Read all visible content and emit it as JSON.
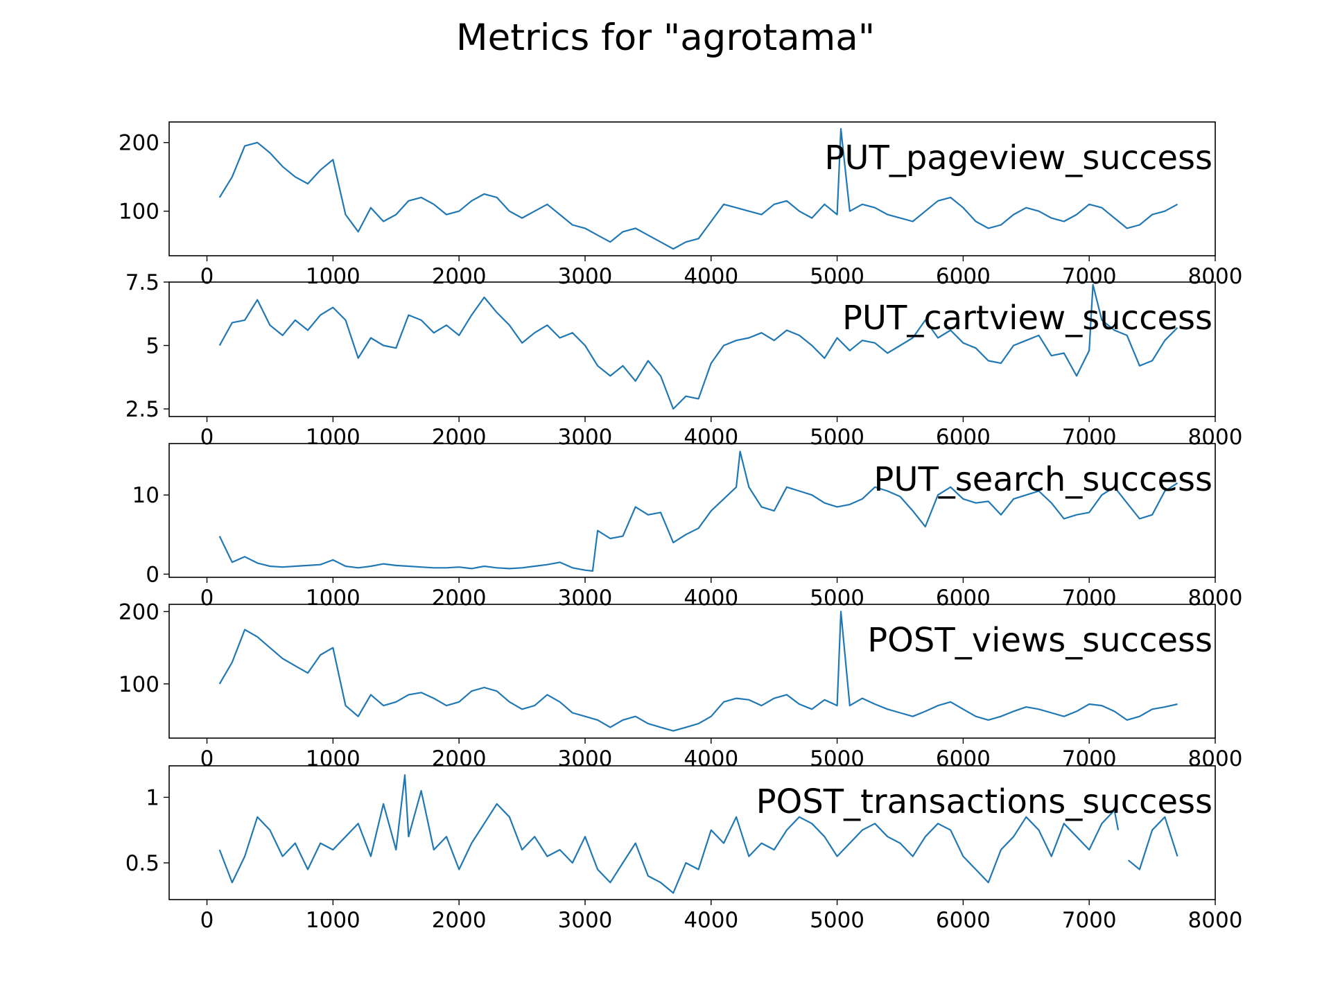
{
  "title": "Metrics for \"agrotama\"",
  "colors": {
    "line": "#1f77b4",
    "axes": "#000000",
    "background": "#ffffff"
  },
  "chart_data": [
    {
      "type": "line",
      "title": "PUT_pageview_success",
      "xlim": [
        -300,
        8000
      ],
      "ylim": [
        35,
        230
      ],
      "xticks": [
        0,
        1000,
        2000,
        3000,
        4000,
        5000,
        6000,
        7000,
        8000
      ],
      "yticks": [
        100,
        200
      ],
      "x": [
        100,
        200,
        300,
        400,
        500,
        600,
        700,
        800,
        900,
        1000,
        1100,
        1200,
        1300,
        1400,
        1500,
        1600,
        1700,
        1800,
        1900,
        2000,
        2100,
        2200,
        2300,
        2400,
        2500,
        2600,
        2700,
        2800,
        2900,
        3000,
        3100,
        3200,
        3300,
        3400,
        3500,
        3600,
        3700,
        3800,
        3900,
        4000,
        4100,
        4200,
        4300,
        4400,
        4500,
        4600,
        4700,
        4800,
        4900,
        5000,
        5030,
        5100,
        5200,
        5300,
        5400,
        5500,
        5600,
        5700,
        5800,
        5900,
        6000,
        6100,
        6200,
        6300,
        6400,
        6500,
        6600,
        6700,
        6800,
        6900,
        7000,
        7100,
        7200,
        7300,
        7400,
        7500,
        7600,
        7700
      ],
      "values": [
        120,
        150,
        195,
        200,
        185,
        165,
        150,
        140,
        160,
        175,
        95,
        70,
        105,
        85,
        95,
        115,
        120,
        110,
        95,
        100,
        115,
        125,
        120,
        100,
        90,
        100,
        110,
        95,
        80,
        75,
        65,
        55,
        70,
        75,
        65,
        55,
        45,
        55,
        60,
        85,
        110,
        105,
        100,
        95,
        110,
        115,
        100,
        90,
        110,
        95,
        220,
        100,
        110,
        105,
        95,
        90,
        85,
        100,
        115,
        120,
        105,
        85,
        75,
        80,
        95,
        105,
        100,
        90,
        85,
        95,
        110,
        105,
        90,
        75,
        80,
        95,
        100,
        110
      ]
    },
    {
      "type": "line",
      "title": "PUT_cartview_success",
      "xlim": [
        -300,
        8000
      ],
      "ylim": [
        2.2,
        7.5
      ],
      "xticks": [
        0,
        1000,
        2000,
        3000,
        4000,
        5000,
        6000,
        7000,
        8000
      ],
      "yticks": [
        2.5,
        5.0,
        7.5
      ],
      "x": [
        100,
        200,
        300,
        400,
        500,
        600,
        700,
        800,
        900,
        1000,
        1100,
        1200,
        1300,
        1400,
        1500,
        1600,
        1700,
        1800,
        1900,
        2000,
        2100,
        2200,
        2300,
        2400,
        2500,
        2600,
        2700,
        2800,
        2900,
        3000,
        3100,
        3200,
        3300,
        3400,
        3500,
        3600,
        3700,
        3800,
        3900,
        4000,
        4100,
        4200,
        4300,
        4400,
        4500,
        4600,
        4700,
        4800,
        4900,
        5000,
        5100,
        5200,
        5300,
        5400,
        5500,
        5600,
        5700,
        5800,
        5900,
        6000,
        6100,
        6200,
        6300,
        6400,
        6500,
        6600,
        6700,
        6800,
        6900,
        7000,
        7030,
        7100,
        7200,
        7300,
        7400,
        7500,
        7600,
        7700
      ],
      "values": [
        5.0,
        5.9,
        6.0,
        6.8,
        5.8,
        5.4,
        6.0,
        5.6,
        6.2,
        6.5,
        6.0,
        4.5,
        5.3,
        5.0,
        4.9,
        6.2,
        6.0,
        5.5,
        5.8,
        5.4,
        6.2,
        6.9,
        6.3,
        5.8,
        5.1,
        5.5,
        5.8,
        5.3,
        5.5,
        5.0,
        4.2,
        3.8,
        4.2,
        3.6,
        4.4,
        3.8,
        2.5,
        3.0,
        2.9,
        4.3,
        5.0,
        5.2,
        5.3,
        5.5,
        5.2,
        5.6,
        5.4,
        5.0,
        4.5,
        5.3,
        4.8,
        5.2,
        5.1,
        4.7,
        5.0,
        5.3,
        6.0,
        5.3,
        5.6,
        5.1,
        4.9,
        4.4,
        4.3,
        5.0,
        5.2,
        5.4,
        4.6,
        4.7,
        3.8,
        4.8,
        7.4,
        6.0,
        5.6,
        5.4,
        4.2,
        4.4,
        5.2,
        5.7
      ]
    },
    {
      "type": "line",
      "title": "PUT_search_success",
      "xlim": [
        -300,
        8000
      ],
      "ylim": [
        -0.4,
        16.5
      ],
      "xticks": [
        0,
        1000,
        2000,
        3000,
        4000,
        5000,
        6000,
        7000,
        8000
      ],
      "yticks": [
        0,
        10
      ],
      "x": [
        100,
        200,
        300,
        400,
        500,
        600,
        700,
        800,
        900,
        1000,
        1100,
        1200,
        1300,
        1400,
        1500,
        1600,
        1700,
        1800,
        1900,
        2000,
        2100,
        2200,
        2300,
        2400,
        2500,
        2600,
        2700,
        2800,
        2900,
        3000,
        3060,
        3100,
        3200,
        3300,
        3400,
        3500,
        3600,
        3700,
        3800,
        3900,
        4000,
        4100,
        4200,
        4230,
        4300,
        4400,
        4500,
        4600,
        4700,
        4800,
        4900,
        5000,
        5100,
        5200,
        5300,
        5400,
        5500,
        5600,
        5700,
        5800,
        5900,
        6000,
        6100,
        6200,
        6300,
        6400,
        6500,
        6600,
        6700,
        6800,
        6900,
        7000,
        7100,
        7200,
        7300,
        7400,
        7500,
        7600,
        7700
      ],
      "values": [
        4.8,
        1.5,
        2.2,
        1.4,
        1.0,
        0.9,
        1.0,
        1.1,
        1.2,
        1.8,
        1.0,
        0.8,
        1.0,
        1.3,
        1.1,
        1.0,
        0.9,
        0.8,
        0.8,
        0.9,
        0.7,
        1.0,
        0.8,
        0.7,
        0.8,
        1.0,
        1.2,
        1.5,
        0.8,
        0.5,
        0.4,
        5.5,
        4.5,
        4.8,
        8.5,
        7.5,
        7.8,
        4.0,
        5.0,
        5.8,
        8.0,
        9.5,
        11.0,
        15.5,
        11.0,
        8.5,
        8.0,
        11.0,
        10.5,
        10.0,
        9.0,
        8.5,
        8.8,
        9.5,
        11.0,
        10.5,
        9.8,
        8.0,
        6.0,
        10.0,
        11.0,
        9.5,
        9.0,
        9.2,
        7.5,
        9.5,
        10.0,
        10.5,
        9.0,
        7.0,
        7.5,
        7.8,
        10.0,
        11.0,
        9.0,
        7.0,
        7.5,
        10.5,
        11.5
      ]
    },
    {
      "type": "line",
      "title": "POST_views_success",
      "xlim": [
        -300,
        8000
      ],
      "ylim": [
        25,
        210
      ],
      "xticks": [
        0,
        1000,
        2000,
        3000,
        4000,
        5000,
        6000,
        7000,
        8000
      ],
      "yticks": [
        100,
        200
      ],
      "x": [
        100,
        200,
        300,
        400,
        500,
        600,
        700,
        800,
        900,
        1000,
        1100,
        1200,
        1300,
        1400,
        1500,
        1600,
        1700,
        1800,
        1900,
        2000,
        2100,
        2200,
        2300,
        2400,
        2500,
        2600,
        2700,
        2800,
        2900,
        3000,
        3100,
        3200,
        3300,
        3400,
        3500,
        3600,
        3700,
        3800,
        3900,
        4000,
        4100,
        4200,
        4300,
        4400,
        4500,
        4600,
        4700,
        4800,
        4900,
        5000,
        5030,
        5100,
        5200,
        5300,
        5400,
        5500,
        5600,
        5700,
        5800,
        5900,
        6000,
        6100,
        6200,
        6300,
        6400,
        6500,
        6600,
        6700,
        6800,
        6900,
        7000,
        7100,
        7200,
        7300,
        7400,
        7500,
        7600,
        7700
      ],
      "values": [
        100,
        130,
        175,
        165,
        150,
        135,
        125,
        115,
        140,
        150,
        70,
        55,
        85,
        70,
        75,
        85,
        88,
        80,
        70,
        75,
        90,
        95,
        90,
        75,
        65,
        70,
        85,
        75,
        60,
        55,
        50,
        40,
        50,
        55,
        45,
        40,
        35,
        40,
        45,
        55,
        75,
        80,
        78,
        70,
        80,
        85,
        72,
        65,
        78,
        70,
        200,
        70,
        80,
        72,
        65,
        60,
        55,
        62,
        70,
        75,
        65,
        55,
        50,
        55,
        62,
        68,
        65,
        60,
        55,
        62,
        72,
        70,
        62,
        50,
        55,
        65,
        68,
        72
      ]
    },
    {
      "type": "line",
      "title": "POST_transactions_success",
      "xlim": [
        -300,
        8000
      ],
      "ylim": [
        0.22,
        1.24
      ],
      "xticks": [
        0,
        1000,
        2000,
        3000,
        4000,
        5000,
        6000,
        7000,
        8000
      ],
      "yticks": [
        0.5,
        1.0
      ],
      "x": [
        100,
        200,
        300,
        400,
        500,
        600,
        700,
        800,
        900,
        1000,
        1100,
        1200,
        1300,
        1400,
        1500,
        1570,
        1600,
        1700,
        1800,
        1900,
        2000,
        2100,
        2200,
        2300,
        2400,
        2500,
        2600,
        2700,
        2800,
        2900,
        3000,
        3100,
        3200,
        3300,
        3400,
        3500,
        3600,
        3700,
        3800,
        3900,
        4000,
        4100,
        4200,
        4300,
        4400,
        4500,
        4600,
        4700,
        4800,
        4900,
        5000,
        5100,
        5200,
        5300,
        5400,
        5500,
        5600,
        5700,
        5800,
        5900,
        6000,
        6100,
        6200,
        6300,
        6400,
        6500,
        6600,
        6700,
        6800,
        6900,
        7000,
        7100,
        7200,
        7230,
        null,
        7310,
        7400,
        7500,
        7600,
        7700
      ],
      "values": [
        0.6,
        0.35,
        0.55,
        0.85,
        0.75,
        0.55,
        0.65,
        0.45,
        0.65,
        0.6,
        0.7,
        0.8,
        0.55,
        0.95,
        0.6,
        1.17,
        0.7,
        1.05,
        0.6,
        0.7,
        0.45,
        0.65,
        0.8,
        0.95,
        0.85,
        0.6,
        0.7,
        0.55,
        0.6,
        0.5,
        0.7,
        0.45,
        0.35,
        0.5,
        0.65,
        0.4,
        0.35,
        0.27,
        0.5,
        0.45,
        0.75,
        0.65,
        0.85,
        0.55,
        0.65,
        0.6,
        0.75,
        0.85,
        0.8,
        0.7,
        0.55,
        0.65,
        0.75,
        0.8,
        0.7,
        0.65,
        0.55,
        0.7,
        0.8,
        0.75,
        0.55,
        0.45,
        0.35,
        0.6,
        0.7,
        0.85,
        0.75,
        0.55,
        0.8,
        0.7,
        0.6,
        0.8,
        0.9,
        0.75,
        null,
        0.52,
        0.45,
        0.75,
        0.85,
        0.55
      ]
    }
  ]
}
